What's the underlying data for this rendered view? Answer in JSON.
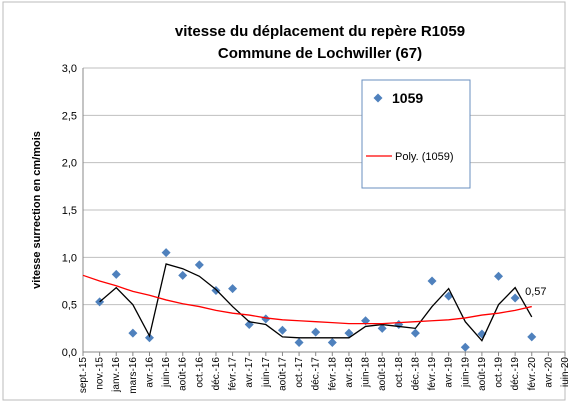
{
  "chart_data": {
    "type": "line",
    "title": [
      "vitesse du déplacement du repère R1059",
      "Commune de Lochwiller (67)"
    ],
    "y_label": "vitesse surrection en cm/mois",
    "categories": [
      "sept.-15",
      "nov.-15",
      "janv.-16",
      "mars-16",
      "avr.-16",
      "juin-16",
      "août-16",
      "oct.-16",
      "déc.-16",
      "févr.-17",
      "avr.-17",
      "juin-17",
      "août-17",
      "oct.-17",
      "déc.-17",
      "févr.-18",
      "avr.-18",
      "juin-18",
      "août-18",
      "oct.-18",
      "déc.-18",
      "févr.-19",
      "avr.-19",
      "juin-19",
      "août-19",
      "oct.-19",
      "déc.-19",
      "févr.-20",
      "avr.-20",
      "juin-20"
    ],
    "ylim": [
      0,
      3
    ],
    "yticks": [
      {
        "value": 0,
        "label": "0,0"
      },
      {
        "value": 0.5,
        "label": "0,5"
      },
      {
        "value": 1,
        "label": "1,0"
      },
      {
        "value": 1.5,
        "label": "1,5"
      },
      {
        "value": 2,
        "label": "2,0"
      },
      {
        "value": 2.5,
        "label": "2,5"
      },
      {
        "value": 3,
        "label": "3,0"
      }
    ],
    "grid": true,
    "series": [
      {
        "name": "1059",
        "color": "#4f81bd",
        "mode": "markers",
        "values": [
          null,
          0.53,
          0.82,
          0.2,
          0.15,
          1.05,
          0.81,
          0.92,
          0.65,
          0.67,
          0.29,
          0.35,
          0.23,
          0.1,
          0.21,
          0.1,
          0.2,
          0.33,
          0.25,
          0.29,
          0.2,
          0.75,
          0.59,
          0.05,
          0.19,
          0.8,
          0.57,
          0.16,
          null,
          null
        ],
        "value_labels": [
          null,
          null,
          null,
          null,
          null,
          null,
          null,
          null,
          null,
          null,
          null,
          null,
          null,
          null,
          null,
          null,
          null,
          null,
          null,
          null,
          null,
          null,
          null,
          null,
          null,
          null,
          "0,57",
          null,
          null,
          null
        ]
      },
      {
        "color": "#000000",
        "mode": "line",
        "values": [
          null,
          0.53,
          0.68,
          0.5,
          0.17,
          0.93,
          0.88,
          0.8,
          0.66,
          0.48,
          0.32,
          0.29,
          0.16,
          0.15,
          0.15,
          0.15,
          0.15,
          0.27,
          0.29,
          0.27,
          0.25,
          0.48,
          0.67,
          0.32,
          0.12,
          0.5,
          0.68,
          0.37,
          null,
          null
        ]
      },
      {
        "name": "Poly. (1059)",
        "color": "#ff0000",
        "mode": "line",
        "values": [
          0.81,
          0.75,
          0.7,
          0.64,
          0.6,
          0.55,
          0.51,
          0.48,
          0.44,
          0.41,
          0.39,
          0.36,
          0.34,
          0.33,
          0.32,
          0.31,
          0.3,
          0.3,
          0.3,
          0.31,
          0.32,
          0.33,
          0.34,
          0.36,
          0.39,
          0.41,
          0.44,
          0.48,
          null,
          null
        ]
      }
    ]
  }
}
